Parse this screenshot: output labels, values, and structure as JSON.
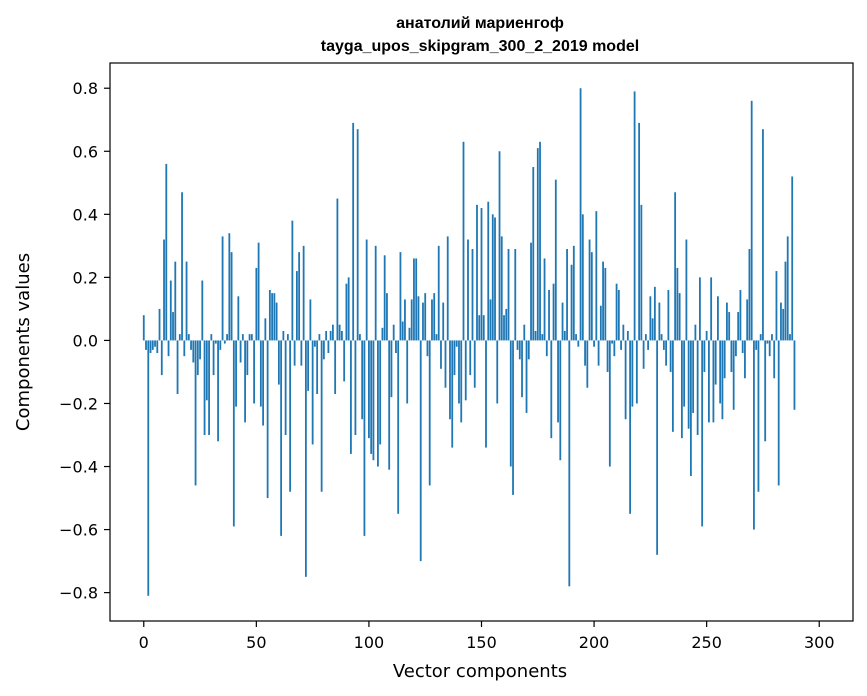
{
  "chart_data": {
    "type": "bar",
    "title": "анатолий мариенгоф",
    "subtitle": "tayga_upos_skipgram_300_2_2019 model",
    "xlabel": "Vector components",
    "ylabel": "Components values",
    "xlim": [
      -15,
      315
    ],
    "ylim": [
      -0.89,
      0.88
    ],
    "xticks": [
      0,
      50,
      100,
      150,
      200,
      250,
      300
    ],
    "yticks": [
      -0.8,
      -0.6,
      -0.4,
      -0.2,
      0.0,
      0.2,
      0.4,
      0.6,
      0.8
    ],
    "xtick_labels": [
      "0",
      "50",
      "100",
      "150",
      "200",
      "250",
      "300"
    ],
    "ytick_labels": [
      "−0.8",
      "−0.6",
      "−0.4",
      "−0.2",
      "0.0",
      "0.2",
      "0.4",
      "0.6",
      "0.8"
    ],
    "grid": false,
    "bar_color": "#1f77b4",
    "values": [
      0.08,
      -0.03,
      -0.81,
      -0.04,
      -0.03,
      -0.02,
      -0.04,
      0.1,
      -0.11,
      0.32,
      0.56,
      -0.05,
      0.19,
      0.09,
      0.25,
      -0.17,
      0.02,
      0.47,
      -0.05,
      0.25,
      0.02,
      -0.03,
      -0.07,
      -0.46,
      -0.11,
      -0.06,
      0.19,
      -0.3,
      -0.19,
      -0.3,
      0.02,
      -0.11,
      -0.01,
      -0.32,
      -0.03,
      0.33,
      -0.01,
      0.02,
      0.34,
      0.28,
      -0.59,
      -0.21,
      0.14,
      -0.07,
      0.02,
      -0.26,
      -0.11,
      0.02,
      0.02,
      -0.2,
      0.23,
      0.31,
      -0.21,
      -0.27,
      0.07,
      -0.5,
      0.16,
      0.15,
      0.15,
      0.12,
      -0.14,
      -0.62,
      0.03,
      -0.3,
      0.02,
      -0.48,
      0.38,
      -0.08,
      0.22,
      0.28,
      -0.08,
      0.3,
      -0.75,
      -0.16,
      0.13,
      -0.33,
      -0.02,
      -0.17,
      0.02,
      -0.48,
      -0.06,
      0.03,
      -0.04,
      0.03,
      0.05,
      -0.17,
      0.45,
      0.05,
      0.03,
      -0.13,
      0.18,
      0.2,
      -0.36,
      0.69,
      -0.3,
      0.67,
      0.02,
      -0.25,
      -0.62,
      0.32,
      -0.31,
      -0.36,
      -0.38,
      0.3,
      -0.4,
      -0.33,
      0.04,
      0.27,
      0.15,
      -0.41,
      -0.18,
      0.05,
      -0.04,
      -0.55,
      0.28,
      0.06,
      0.13,
      -0.2,
      0.04,
      0.13,
      0.26,
      0.26,
      0.14,
      -0.7,
      0.12,
      0.15,
      -0.05,
      -0.46,
      0.13,
      0.15,
      0.02,
      0.3,
      -0.09,
      0.12,
      -0.15,
      0.33,
      -0.25,
      -0.34,
      -0.11,
      -0.02,
      -0.2,
      -0.26,
      0.63,
      -0.19,
      0.32,
      -0.11,
      0.29,
      -0.15,
      0.43,
      0.08,
      0.42,
      0.08,
      -0.34,
      0.44,
      0.13,
      0.4,
      0.39,
      -0.2,
      0.6,
      0.33,
      0.08,
      0.1,
      0.29,
      -0.4,
      -0.49,
      0.29,
      -0.03,
      -0.06,
      -0.18,
      0.05,
      -0.23,
      -0.06,
      0.31,
      0.55,
      0.03,
      0.61,
      0.63,
      0.02,
      0.26,
      -0.05,
      0.16,
      -0.31,
      0.18,
      0.51,
      -0.26,
      -0.38,
      0.12,
      0.03,
      0.29,
      -0.78,
      0.24,
      0.3,
      0.02,
      -0.02,
      0.8,
      0.4,
      -0.08,
      -0.15,
      0.32,
      0.28,
      -0.02,
      0.41,
      -0.08,
      0.11,
      0.25,
      0.23,
      -0.1,
      -0.4,
      -0.01,
      -0.05,
      0.18,
      0.16,
      -0.03,
      0.05,
      -0.25,
      0.03,
      -0.55,
      -0.21,
      0.79,
      -0.2,
      0.69,
      0.43,
      -0.09,
      0.02,
      -0.03,
      0.14,
      0.07,
      0.17,
      -0.68,
      0.12,
      0.02,
      -0.03,
      -0.08,
      0.16,
      -0.1,
      -0.29,
      0.47,
      0.23,
      0.15,
      -0.31,
      -0.21,
      0.32,
      -0.28,
      -0.43,
      -0.23,
      0.05,
      -0.3,
      0.2,
      -0.59,
      -0.1,
      0.03,
      -0.26,
      0.2,
      -0.26,
      -0.14,
      0.14,
      -0.2,
      -0.25,
      -0.12,
      0.12,
      0.09,
      -0.1,
      -0.22,
      -0.05,
      0.09,
      0.16,
      -0.04,
      -0.12,
      0.13,
      0.29,
      0.76,
      -0.6,
      -0.03,
      -0.48,
      0.02,
      0.67,
      -0.32,
      -0.01,
      -0.05,
      0.02,
      -0.12,
      0.22,
      -0.46,
      0.12,
      0.1,
      0.25,
      0.33,
      0.02,
      0.52,
      -0.22
    ]
  }
}
